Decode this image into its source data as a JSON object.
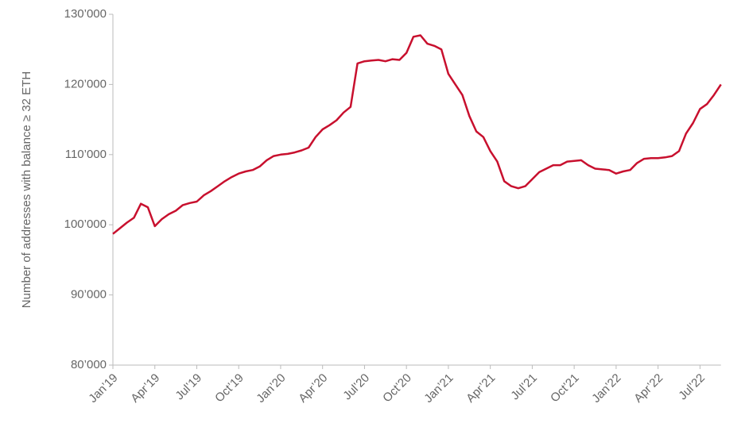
{
  "chart_data": {
    "type": "line",
    "y_label": "Number of addresses with balance ≥ 32 ETH",
    "categories": [
      "Jan’19",
      null,
      null,
      null,
      null,
      null,
      "Apr’19",
      null,
      null,
      null,
      null,
      null,
      "Jul’19",
      null,
      null,
      null,
      null,
      null,
      "Oct’19",
      null,
      null,
      null,
      null,
      null,
      "Jan’20",
      null,
      null,
      null,
      null,
      null,
      "Apr’20",
      null,
      null,
      null,
      null,
      null,
      "Jul’20",
      null,
      null,
      null,
      null,
      null,
      "Oct’20",
      null,
      null,
      null,
      null,
      null,
      "Jan’21",
      null,
      null,
      null,
      null,
      null,
      "Apr’21",
      null,
      null,
      null,
      null,
      null,
      "Jul’21",
      null,
      null,
      null,
      null,
      null,
      "Oct’21",
      null,
      null,
      null,
      null,
      null,
      "Jan’22",
      null,
      null,
      null,
      null,
      null,
      "Apr’22",
      null,
      null,
      null,
      null,
      null,
      "Jul’22",
      null,
      null,
      null
    ],
    "values": [
      98700,
      99500,
      100300,
      101000,
      103000,
      102500,
      99800,
      100800,
      101500,
      102000,
      102800,
      103100,
      103300,
      104200,
      104800,
      105500,
      106200,
      106800,
      107300,
      107600,
      107800,
      108300,
      109200,
      109800,
      110000,
      110100,
      110300,
      110600,
      111000,
      112500,
      113600,
      114200,
      114900,
      116000,
      116800,
      123000,
      123300,
      123400,
      123500,
      123300,
      123600,
      123500,
      124500,
      126800,
      127000,
      125800,
      125500,
      125000,
      121500,
      120000,
      118500,
      115500,
      113300,
      112500,
      110500,
      109000,
      106200,
      105500,
      105200,
      105500,
      106500,
      107500,
      108000,
      108500,
      108500,
      109000,
      109100,
      109200,
      108500,
      108000,
      107900,
      107800,
      107300,
      107600,
      107800,
      108800,
      109400,
      109500,
      109500,
      109600,
      109800,
      110500,
      113000,
      114500,
      116500,
      117200,
      118500,
      120000
    ],
    "color": "#c8102e",
    "ylim": [
      80000,
      130000
    ],
    "yticks": [
      {
        "value": 80000,
        "label": "80’000"
      },
      {
        "value": 90000,
        "label": "90’000"
      },
      {
        "value": 100000,
        "label": "100’000"
      },
      {
        "value": 110000,
        "label": "110’000"
      },
      {
        "value": 120000,
        "label": "120’000"
      },
      {
        "value": 130000,
        "label": "130’000"
      }
    ]
  }
}
